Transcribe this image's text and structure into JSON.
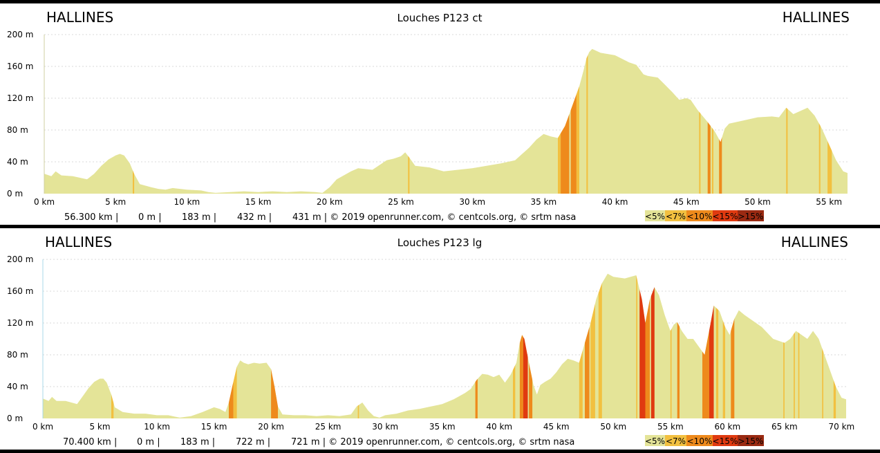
{
  "colors": {
    "lt5": "#e4e498",
    "lt7": "#f2c040",
    "lt10": "#ee8a1c",
    "lt15": "#e03a10",
    "gt15": "#9a2a12",
    "page_background": "#000000",
    "panel_background": "#ffffff"
  },
  "legend": [
    "<5%",
    "<7%",
    "<10%",
    "<15%",
    ">15%"
  ],
  "chart_data": [
    {
      "type": "area",
      "title": "Louches P123 ct",
      "start_label": "HALLINES",
      "end_label": "HALLINES",
      "xlim": [
        0,
        56.3
      ],
      "ylim": [
        0,
        200
      ],
      "x_ticks": [
        0,
        5,
        10,
        15,
        20,
        25,
        30,
        35,
        40,
        45,
        50,
        55
      ],
      "x_tick_labels": [
        "0 km",
        "5 km",
        "10 km",
        "15 km",
        "20 km",
        "25 km",
        "30 km",
        "35 km",
        "40 km",
        "45 km",
        "50 km",
        "55 km"
      ],
      "y_ticks": [
        0,
        40,
        80,
        120,
        160,
        200
      ],
      "y_tick_labels": [
        "0 m",
        "40 m",
        "80 m",
        "120 m",
        "160 m",
        "200 m"
      ],
      "grid": true,
      "stats": [
        "56.300 km |",
        "0 m |",
        "183 m |",
        "432 m |",
        "431 m | © 2019 openrunner.com, © centcols.org, © srtm nasa"
      ],
      "profile": [
        [
          0,
          25
        ],
        [
          0.5,
          22
        ],
        [
          0.8,
          28
        ],
        [
          1.2,
          23
        ],
        [
          2,
          22
        ],
        [
          2.5,
          20
        ],
        [
          3,
          18
        ],
        [
          3.5,
          25
        ],
        [
          4,
          35
        ],
        [
          4.5,
          43
        ],
        [
          5,
          48
        ],
        [
          5.3,
          50
        ],
        [
          5.6,
          48
        ],
        [
          6,
          38
        ],
        [
          6.3,
          25
        ],
        [
          6.7,
          12
        ],
        [
          7.5,
          8
        ],
        [
          8,
          6
        ],
        [
          8.5,
          5
        ],
        [
          9,
          7
        ],
        [
          10,
          5
        ],
        [
          11,
          4
        ],
        [
          11.5,
          2
        ],
        [
          12,
          1
        ],
        [
          13,
          2
        ],
        [
          14,
          3
        ],
        [
          15,
          2
        ],
        [
          16,
          3
        ],
        [
          17,
          2
        ],
        [
          18,
          3
        ],
        [
          19,
          2
        ],
        [
          19.5,
          1
        ],
        [
          20,
          8
        ],
        [
          20.5,
          18
        ],
        [
          21.5,
          28
        ],
        [
          22,
          32
        ],
        [
          23,
          30
        ],
        [
          24,
          42
        ],
        [
          24.5,
          44
        ],
        [
          25,
          47
        ],
        [
          25.3,
          52
        ],
        [
          25.6,
          45
        ],
        [
          26,
          35
        ],
        [
          27,
          33
        ],
        [
          28,
          28
        ],
        [
          29,
          30
        ],
        [
          30,
          32
        ],
        [
          31,
          35
        ],
        [
          32,
          38
        ],
        [
          33,
          42
        ],
        [
          33.5,
          50
        ],
        [
          34,
          58
        ],
        [
          34.5,
          68
        ],
        [
          35,
          75
        ],
        [
          35.5,
          72
        ],
        [
          36,
          70
        ],
        [
          36.5,
          85
        ],
        [
          37,
          110
        ],
        [
          37.5,
          135
        ],
        [
          37.8,
          155
        ],
        [
          38,
          170
        ],
        [
          38.2,
          178
        ],
        [
          38.4,
          182
        ],
        [
          39,
          177
        ],
        [
          40,
          174
        ],
        [
          41,
          165
        ],
        [
          41.5,
          162
        ],
        [
          42,
          150
        ],
        [
          42.3,
          148
        ],
        [
          43,
          146
        ],
        [
          43.5,
          137
        ],
        [
          44,
          128
        ],
        [
          44.5,
          118
        ],
        [
          45,
          120
        ],
        [
          45.3,
          118
        ],
        [
          45.8,
          105
        ],
        [
          46.5,
          90
        ],
        [
          47,
          78
        ],
        [
          47.4,
          65
        ],
        [
          47.7,
          82
        ],
        [
          48,
          88
        ],
        [
          48.5,
          90
        ],
        [
          49,
          92
        ],
        [
          50,
          96
        ],
        [
          51,
          97
        ],
        [
          51.5,
          96
        ],
        [
          52,
          108
        ],
        [
          52.5,
          100
        ],
        [
          53,
          104
        ],
        [
          53.5,
          108
        ],
        [
          54,
          98
        ],
        [
          54.5,
          82
        ],
        [
          55,
          62
        ],
        [
          55.5,
          42
        ],
        [
          56,
          28
        ],
        [
          56.3,
          26
        ]
      ],
      "steep_segments": [
        {
          "from": 6.2,
          "to": 6.3,
          "grade": "<7%"
        },
        {
          "from": 25.5,
          "to": 25.6,
          "grade": "<7%"
        },
        {
          "from": 36.0,
          "to": 36.2,
          "grade": "<7%"
        },
        {
          "from": 36.2,
          "to": 36.8,
          "grade": "<10%"
        },
        {
          "from": 36.9,
          "to": 37.3,
          "grade": "<10%"
        },
        {
          "from": 37.3,
          "to": 37.5,
          "grade": "<7%"
        },
        {
          "from": 38.0,
          "to": 38.1,
          "grade": "<7%"
        },
        {
          "from": 45.9,
          "to": 46.0,
          "grade": "<7%"
        },
        {
          "from": 46.5,
          "to": 46.7,
          "grade": "<10%"
        },
        {
          "from": 46.8,
          "to": 46.9,
          "grade": "<7%"
        },
        {
          "from": 47.3,
          "to": 47.5,
          "grade": "<10%"
        },
        {
          "from": 52.0,
          "to": 52.1,
          "grade": "<7%"
        },
        {
          "from": 54.3,
          "to": 54.4,
          "grade": "<7%"
        },
        {
          "from": 54.9,
          "to": 55.2,
          "grade": "<7%"
        }
      ]
    },
    {
      "type": "area",
      "title": "Louches P123 lg",
      "start_label": "HALLINES",
      "end_label": "HALLINES",
      "xlim": [
        0,
        70.4
      ],
      "ylim": [
        0,
        200
      ],
      "x_ticks": [
        0,
        5,
        10,
        15,
        20,
        25,
        30,
        35,
        40,
        45,
        50,
        55,
        60,
        65,
        70
      ],
      "x_tick_labels": [
        "0 km",
        "5 km",
        "10 km",
        "15 km",
        "20 km",
        "25 km",
        "30 km",
        "35 km",
        "40 km",
        "45 km",
        "50 km",
        "55 km",
        "60 km",
        "65 km",
        "70 km"
      ],
      "y_ticks": [
        0,
        40,
        80,
        120,
        160,
        200
      ],
      "y_tick_labels": [
        "0 m",
        "40 m",
        "80 m",
        "120 m",
        "160 m",
        "200 m"
      ],
      "grid": true,
      "stats": [
        "70.400 km |",
        "0 m |",
        "183 m |",
        "722 m |",
        "721 m | © 2019 openrunner.com, © centcols.org, © srtm nasa"
      ],
      "profile": [
        [
          0,
          25
        ],
        [
          0.5,
          22
        ],
        [
          0.8,
          27
        ],
        [
          1.2,
          22
        ],
        [
          2,
          22
        ],
        [
          2.5,
          20
        ],
        [
          3,
          18
        ],
        [
          3.5,
          28
        ],
        [
          4,
          38
        ],
        [
          4.5,
          46
        ],
        [
          5,
          50
        ],
        [
          5.3,
          50
        ],
        [
          5.6,
          45
        ],
        [
          6,
          30
        ],
        [
          6.3,
          14
        ],
        [
          7,
          8
        ],
        [
          8,
          6
        ],
        [
          9,
          6
        ],
        [
          10,
          4
        ],
        [
          11,
          4
        ],
        [
          12,
          1
        ],
        [
          13,
          3
        ],
        [
          14,
          8
        ],
        [
          15,
          14
        ],
        [
          15.5,
          12
        ],
        [
          16,
          8
        ],
        [
          16.3,
          20
        ],
        [
          16.6,
          40
        ],
        [
          17,
          65
        ],
        [
          17.3,
          73
        ],
        [
          17.6,
          70
        ],
        [
          18,
          68
        ],
        [
          18.5,
          70
        ],
        [
          19,
          69
        ],
        [
          19.6,
          70
        ],
        [
          20,
          62
        ],
        [
          20.3,
          40
        ],
        [
          20.6,
          15
        ],
        [
          21,
          5
        ],
        [
          22,
          4
        ],
        [
          23,
          4
        ],
        [
          24,
          3
        ],
        [
          25,
          4
        ],
        [
          26,
          3
        ],
        [
          27,
          5
        ],
        [
          27.5,
          15
        ],
        [
          28,
          20
        ],
        [
          28.5,
          10
        ],
        [
          29,
          3
        ],
        [
          29.5,
          1
        ],
        [
          30,
          4
        ],
        [
          31,
          6
        ],
        [
          32,
          10
        ],
        [
          33,
          12
        ],
        [
          34,
          15
        ],
        [
          35,
          18
        ],
        [
          36,
          24
        ],
        [
          37,
          32
        ],
        [
          37.5,
          37
        ],
        [
          38,
          48
        ],
        [
          38.5,
          56
        ],
        [
          39,
          55
        ],
        [
          39.5,
          52
        ],
        [
          40,
          55
        ],
        [
          40.5,
          45
        ],
        [
          41,
          55
        ],
        [
          41.5,
          70
        ],
        [
          41.8,
          95
        ],
        [
          42,
          105
        ],
        [
          42.2,
          100
        ],
        [
          42.6,
          70
        ],
        [
          43,
          42
        ],
        [
          43.3,
          30
        ],
        [
          43.6,
          42
        ],
        [
          44,
          46
        ],
        [
          44.5,
          50
        ],
        [
          45,
          58
        ],
        [
          45.5,
          68
        ],
        [
          46,
          75
        ],
        [
          46.5,
          73
        ],
        [
          47,
          70
        ],
        [
          47.5,
          95
        ],
        [
          48,
          120
        ],
        [
          48.5,
          150
        ],
        [
          49,
          170
        ],
        [
          49.5,
          182
        ],
        [
          50,
          178
        ],
        [
          51,
          176
        ],
        [
          52,
          180
        ],
        [
          52.5,
          150
        ],
        [
          52.8,
          120
        ],
        [
          53.2,
          150
        ],
        [
          53.6,
          165
        ],
        [
          54,
          155
        ],
        [
          54.5,
          130
        ],
        [
          55,
          110
        ],
        [
          55.3,
          118
        ],
        [
          55.6,
          121
        ],
        [
          56,
          110
        ],
        [
          56.5,
          100
        ],
        [
          57,
          100
        ],
        [
          57.5,
          90
        ],
        [
          58,
          80
        ],
        [
          58.5,
          118
        ],
        [
          58.8,
          142
        ],
        [
          59.3,
          135
        ],
        [
          59.8,
          115
        ],
        [
          60.2,
          105
        ],
        [
          60.6,
          125
        ],
        [
          61,
          136
        ],
        [
          61.5,
          130
        ],
        [
          62,
          125
        ],
        [
          63,
          115
        ],
        [
          64,
          100
        ],
        [
          65,
          95
        ],
        [
          65.5,
          100
        ],
        [
          66,
          110
        ],
        [
          66.5,
          105
        ],
        [
          67,
          100
        ],
        [
          67.5,
          110
        ],
        [
          68,
          100
        ],
        [
          68.5,
          80
        ],
        [
          69,
          60
        ],
        [
          69.5,
          40
        ],
        [
          70,
          26
        ],
        [
          70.4,
          24
        ]
      ],
      "steep_segments": [
        {
          "from": 6.0,
          "to": 6.2,
          "grade": "<7%"
        },
        {
          "from": 16.3,
          "to": 16.7,
          "grade": "<10%"
        },
        {
          "from": 16.7,
          "to": 17.0,
          "grade": "<7%"
        },
        {
          "from": 20.0,
          "to": 20.6,
          "grade": "<10%"
        },
        {
          "from": 27.6,
          "to": 27.7,
          "grade": "<7%"
        },
        {
          "from": 37.9,
          "to": 38.1,
          "grade": "<10%"
        },
        {
          "from": 41.2,
          "to": 41.4,
          "grade": "<7%"
        },
        {
          "from": 41.8,
          "to": 42.1,
          "grade": "<10%"
        },
        {
          "from": 42.1,
          "to": 42.5,
          "grade": "<15%"
        },
        {
          "from": 42.6,
          "to": 42.9,
          "grade": "<10%"
        },
        {
          "from": 47.0,
          "to": 47.3,
          "grade": "<7%"
        },
        {
          "from": 47.5,
          "to": 47.9,
          "grade": "<10%"
        },
        {
          "from": 48.0,
          "to": 48.4,
          "grade": "<7%"
        },
        {
          "from": 48.7,
          "to": 49.0,
          "grade": "<7%"
        },
        {
          "from": 52.0,
          "to": 52.1,
          "grade": "<7%"
        },
        {
          "from": 52.3,
          "to": 52.8,
          "grade": "<15%"
        },
        {
          "from": 52.8,
          "to": 53.2,
          "grade": "<10%"
        },
        {
          "from": 53.3,
          "to": 53.6,
          "grade": "<15%"
        },
        {
          "from": 55.0,
          "to": 55.1,
          "grade": "<7%"
        },
        {
          "from": 55.6,
          "to": 55.8,
          "grade": "<10%"
        },
        {
          "from": 57.8,
          "to": 58.4,
          "grade": "<10%"
        },
        {
          "from": 58.4,
          "to": 58.8,
          "grade": "<15%"
        },
        {
          "from": 59.0,
          "to": 59.2,
          "grade": "<7%"
        },
        {
          "from": 59.6,
          "to": 59.8,
          "grade": "<7%"
        },
        {
          "from": 60.3,
          "to": 60.6,
          "grade": "<10%"
        },
        {
          "from": 64.9,
          "to": 65.0,
          "grade": "<7%"
        },
        {
          "from": 65.8,
          "to": 65.9,
          "grade": "<7%"
        },
        {
          "from": 66.2,
          "to": 66.3,
          "grade": "<7%"
        },
        {
          "from": 68.3,
          "to": 68.4,
          "grade": "<7%"
        },
        {
          "from": 69.3,
          "to": 69.5,
          "grade": "<7%"
        }
      ]
    }
  ]
}
